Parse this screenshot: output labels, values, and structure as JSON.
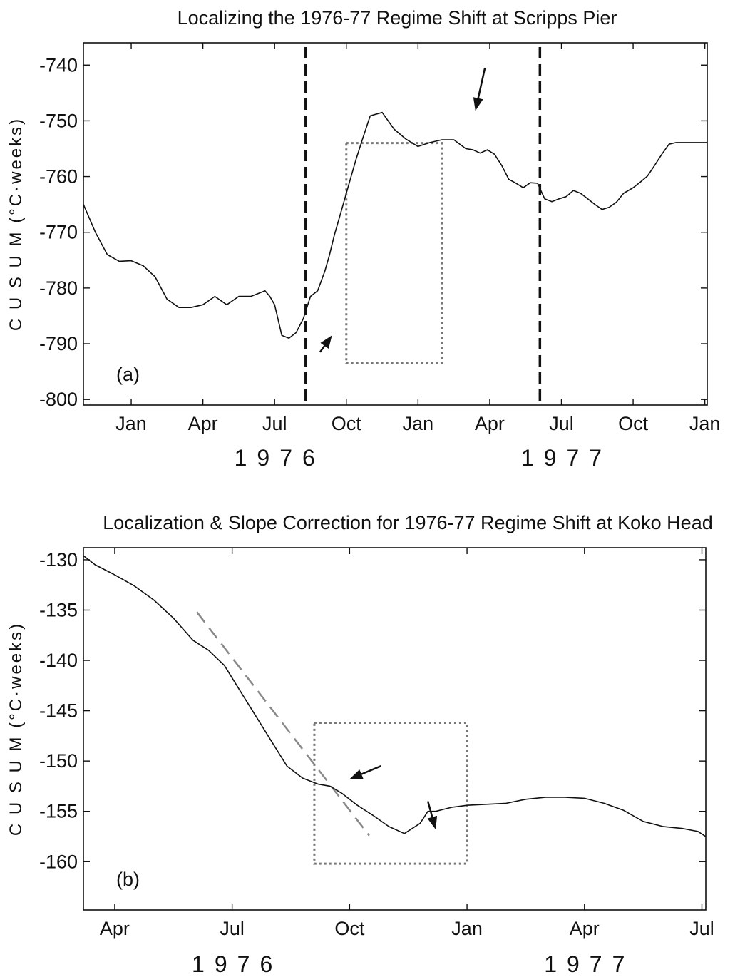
{
  "chart_data": [
    {
      "type": "line",
      "panel_label": "(a)",
      "title": "Localizing the 1976-77 Regime Shift at Scripps Pier",
      "ylabel": "C U S U M (°C·weeks)",
      "ylim": [
        -801,
        -736
      ],
      "yticks": [
        -740,
        -750,
        -760,
        -770,
        -780,
        -790,
        -800
      ],
      "xlim": [
        -2.0,
        24.1
      ],
      "xticks": [
        {
          "month": 0,
          "label": "Jan"
        },
        {
          "month": 3,
          "label": "Apr"
        },
        {
          "month": 6,
          "label": "Jul"
        },
        {
          "month": 9,
          "label": "Oct"
        },
        {
          "month": 12,
          "label": "Jan"
        },
        {
          "month": 15,
          "label": "Apr"
        },
        {
          "month": 18,
          "label": "Jul"
        },
        {
          "month": 21,
          "label": "Oct"
        },
        {
          "month": 24,
          "label": "Jan"
        }
      ],
      "year_labels": [
        {
          "month": 6,
          "label": "1976"
        },
        {
          "month": 18,
          "label": "1977"
        }
      ],
      "series": [
        {
          "x": [
            -2.0,
            -1.5,
            -1.0,
            -0.5,
            0.0,
            0.5,
            1.0,
            1.5,
            2.0,
            2.5,
            3.0,
            3.5,
            4.0,
            4.5,
            5.0,
            5.3,
            5.6,
            5.8,
            6.0,
            6.3,
            6.6,
            6.9,
            7.2,
            7.5,
            7.8,
            8.1,
            8.3,
            8.5,
            8.8,
            9.1,
            9.4,
            9.7,
            10.0,
            10.5,
            11.0,
            11.5,
            12.0,
            12.5,
            13.0,
            13.5,
            14.0,
            14.3,
            14.6,
            14.9,
            15.2,
            15.5,
            15.8,
            16.1,
            16.4,
            16.7,
            17.0,
            17.3,
            17.6,
            17.9,
            18.2,
            18.5,
            18.8,
            19.1,
            19.4,
            19.7,
            20.0,
            20.3,
            20.6,
            21.0,
            21.3,
            21.6,
            21.9,
            22.2,
            22.5,
            22.8,
            23.1,
            23.4,
            23.7,
            24.1
          ],
          "y": [
            -765,
            -770,
            -774,
            -775.2,
            -775.1,
            -776,
            -778,
            -782,
            -783.5,
            -783.5,
            -783,
            -781.5,
            -783,
            -781.5,
            -781.5,
            -781,
            -780.5,
            -781.5,
            -783,
            -788.5,
            -789,
            -788,
            -785.5,
            -781.5,
            -780.5,
            -777,
            -774,
            -770.5,
            -766,
            -761.5,
            -757,
            -753,
            -749.1,
            -748.5,
            -751.5,
            -753.3,
            -754.6,
            -753.9,
            -753.4,
            -753.4,
            -755,
            -755.2,
            -755.8,
            -755.2,
            -756,
            -758,
            -760.5,
            -761.2,
            -762,
            -761.1,
            -761.2,
            -764,
            -764.5,
            -764,
            -763.6,
            -762.5,
            -763,
            -764,
            -765,
            -765.9,
            -765.5,
            -764.6,
            -763,
            -762,
            -761,
            -759.9,
            -758,
            -756,
            -754.2,
            -753.9,
            -753.9,
            -753.9,
            -753.9,
            -753.9
          ]
        }
      ],
      "vlines_dashed": [
        7.3,
        17.1
      ],
      "dotted_box": {
        "x": [
          9.0,
          13.0
        ],
        "y": [
          -793.5,
          -754
        ]
      },
      "arrows": [
        {
          "tip": [
            8.4,
            -788.5
          ],
          "tail": [
            7.9,
            -791.5
          ]
        },
        {
          "tip": [
            14.4,
            -748.2
          ],
          "tail": [
            14.8,
            -740.5
          ]
        }
      ]
    },
    {
      "type": "line",
      "panel_label": "(b)",
      "title": "Localization & Slope Correction for 1976-77 Regime Shift at Koko Head",
      "ylabel": "C U S U M (°C·weeks)",
      "ylim": [
        -164.8,
        -128.8
      ],
      "yticks": [
        -130,
        -135,
        -140,
        -145,
        -150,
        -155,
        -160
      ],
      "xlim": [
        2.2,
        18.1
      ],
      "xticks": [
        {
          "month": 3,
          "label": "Apr"
        },
        {
          "month": 6,
          "label": "Jul"
        },
        {
          "month": 9,
          "label": "Oct"
        },
        {
          "month": 12,
          "label": "Jan"
        },
        {
          "month": 15,
          "label": "Apr"
        },
        {
          "month": 18,
          "label": "Jul"
        }
      ],
      "year_labels": [
        {
          "month": 6,
          "label": "1976"
        },
        {
          "month": 15,
          "label": "1977"
        }
      ],
      "series": [
        {
          "x": [
            2.2,
            2.5,
            3.0,
            3.5,
            4.0,
            4.5,
            5.0,
            5.4,
            5.8,
            6.2,
            6.6,
            7.0,
            7.4,
            7.8,
            8.2,
            8.5,
            8.8,
            9.2,
            9.6,
            10.0,
            10.4,
            10.8,
            11.0,
            11.2,
            11.4,
            11.6,
            11.8,
            12.0,
            12.5,
            13.0,
            13.5,
            14.0,
            14.5,
            15.0,
            15.5,
            16.0,
            16.5,
            17.0,
            17.5,
            17.9,
            18.1
          ],
          "y": [
            -129.6,
            -130.5,
            -131.5,
            -132.6,
            -134,
            -135.8,
            -138,
            -139,
            -140.5,
            -143,
            -145.5,
            -148,
            -150.5,
            -151.7,
            -152.3,
            -152.5,
            -153.2,
            -154.4,
            -155.4,
            -156.5,
            -157.2,
            -156.2,
            -155,
            -155,
            -154.8,
            -154.6,
            -154.5,
            -154.4,
            -154.3,
            -154.2,
            -153.8,
            -153.6,
            -153.6,
            -153.7,
            -154.2,
            -154.9,
            -156,
            -156.5,
            -156.7,
            -157,
            -157.5
          ]
        }
      ],
      "dashed_fit": {
        "x": [
          5.1,
          9.5
        ],
        "y": [
          -135.2,
          -157.4
        ]
      },
      "dotted_box": {
        "x": [
          8.1,
          12.0
        ],
        "y": [
          -160.2,
          -146.2
        ]
      },
      "arrows": [
        {
          "tip": [
            9.0,
            -151.8
          ],
          "tail": [
            9.8,
            -150.5
          ]
        },
        {
          "tip": [
            11.2,
            -156.8
          ],
          "tail": [
            11.0,
            -154.0
          ]
        }
      ]
    }
  ]
}
